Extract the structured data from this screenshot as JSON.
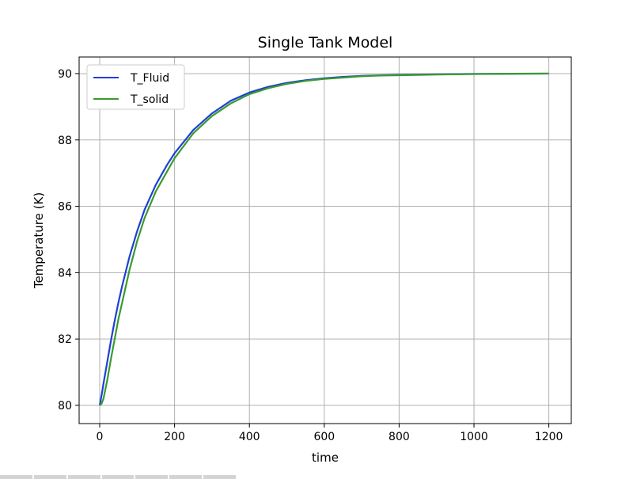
{
  "chart_data": {
    "type": "line",
    "title": "Single Tank Model",
    "xlabel": "time",
    "ylabel": "Temperature (K)",
    "xlim": [
      -55,
      1260
    ],
    "ylim": [
      79.45,
      90.5
    ],
    "xticks": [
      0,
      200,
      400,
      600,
      800,
      1000,
      1200
    ],
    "yticks": [
      80,
      82,
      84,
      86,
      88,
      90
    ],
    "grid": true,
    "legend_position": "top-left",
    "series": [
      {
        "name": "T_Fluid",
        "color": "#1f3fd6",
        "x": [
          0,
          5,
          10,
          20,
          30,
          40,
          50,
          60,
          80,
          100,
          120,
          150,
          180,
          200,
          250,
          300,
          350,
          400,
          450,
          500,
          550,
          600,
          650,
          700,
          750,
          800,
          900,
          1000,
          1100,
          1200
        ],
        "y": [
          80.0,
          80.3,
          80.65,
          81.3,
          81.95,
          82.55,
          83.1,
          83.6,
          84.5,
          85.25,
          85.9,
          86.65,
          87.25,
          87.6,
          88.3,
          88.8,
          89.18,
          89.43,
          89.6,
          89.72,
          89.8,
          89.86,
          89.9,
          89.93,
          89.95,
          89.96,
          89.98,
          89.99,
          89.995,
          90.0
        ]
      },
      {
        "name": "T_solid",
        "color": "#3a9a2f",
        "x": [
          0,
          5,
          10,
          20,
          30,
          40,
          50,
          60,
          80,
          100,
          120,
          150,
          180,
          200,
          250,
          300,
          350,
          400,
          450,
          500,
          550,
          600,
          650,
          700,
          750,
          800,
          900,
          1000,
          1100,
          1200
        ],
        "y": [
          80.0,
          80.05,
          80.2,
          80.75,
          81.4,
          82.0,
          82.6,
          83.1,
          84.1,
          84.95,
          85.65,
          86.45,
          87.05,
          87.45,
          88.2,
          88.72,
          89.1,
          89.38,
          89.56,
          89.69,
          89.78,
          89.84,
          89.88,
          89.92,
          89.94,
          89.95,
          89.97,
          89.985,
          89.995,
          90.0
        ]
      }
    ]
  }
}
